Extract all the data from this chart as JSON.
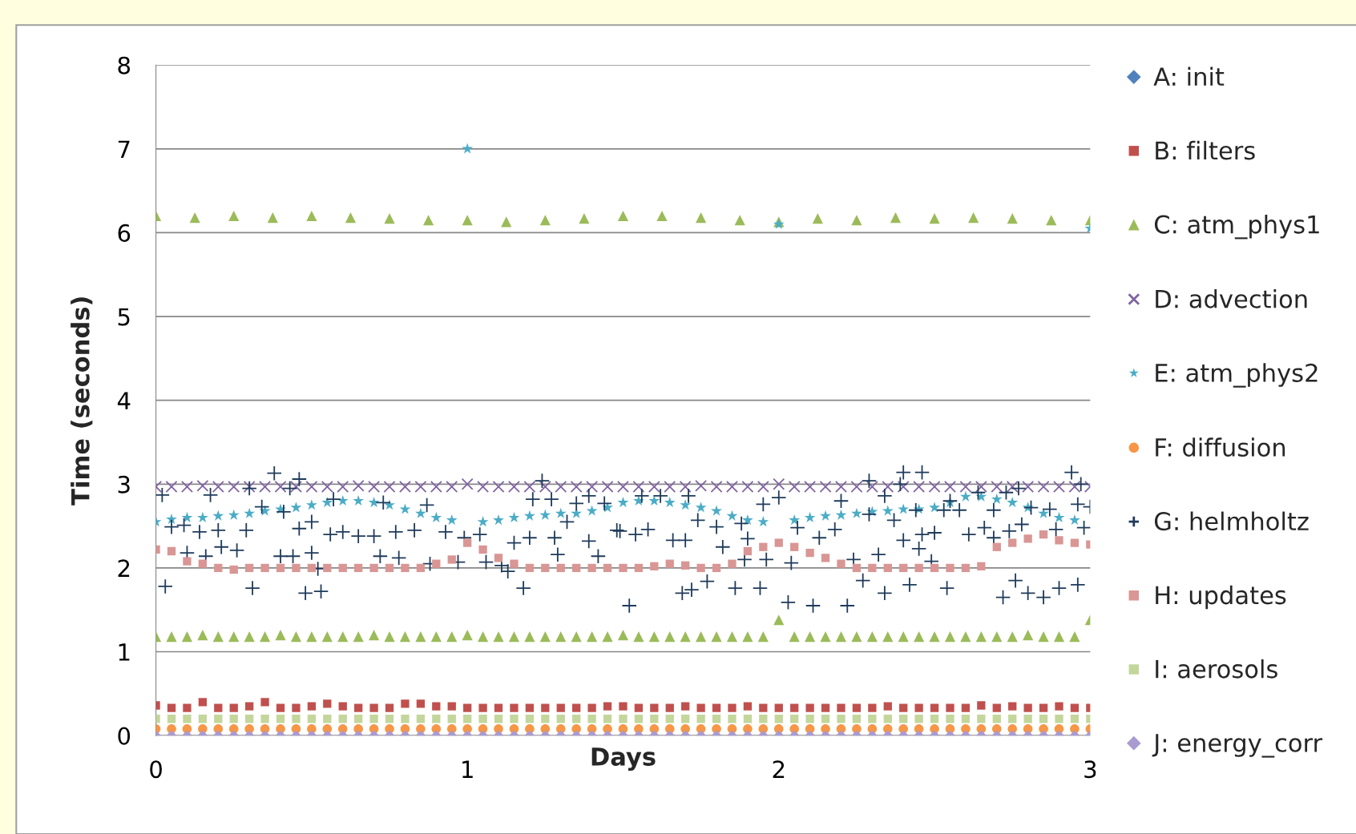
{
  "chart_data": {
    "type": "scatter",
    "xlabel": "Days",
    "ylabel": "Time (seconds)",
    "x": [
      0,
      0.05,
      0.1,
      0.15,
      0.2,
      0.25,
      0.3,
      0.35,
      0.4,
      0.45,
      0.5,
      0.55,
      0.6,
      0.65,
      0.7,
      0.75,
      0.8,
      0.85,
      0.9,
      0.95,
      1,
      1.05,
      1.1,
      1.15,
      1.2,
      1.25,
      1.3,
      1.35,
      1.4,
      1.45,
      1.5,
      1.55,
      1.6,
      1.65,
      1.7,
      1.75,
      1.8,
      1.85,
      1.9,
      1.95,
      2,
      2.05,
      2.1,
      2.15,
      2.2,
      2.25,
      2.3,
      2.35,
      2.4,
      2.45,
      2.5,
      2.55,
      2.6,
      2.65,
      2.7,
      2.75,
      2.8,
      2.85,
      2.9,
      2.95,
      3
    ],
    "xlim": [
      0,
      3
    ],
    "xticks": [
      0,
      1,
      2,
      3
    ],
    "ylim": [
      0,
      8
    ],
    "yticks": [
      0,
      1,
      2,
      3,
      4,
      5,
      6,
      7,
      8
    ],
    "grid": "y",
    "legend": "right",
    "series": [
      {
        "name": "A: init",
        "color": "#4f81bd",
        "marker": "diamond",
        "values": [
          null,
          null,
          null,
          null,
          null,
          null,
          null,
          null,
          null,
          null,
          null,
          null,
          null,
          null,
          null,
          null,
          null,
          null,
          null,
          null,
          null,
          null,
          null,
          null,
          null,
          null,
          null,
          null,
          null,
          null,
          null,
          null,
          null,
          null,
          null,
          null,
          null,
          null,
          null,
          null,
          null,
          null,
          null,
          null,
          null,
          null,
          null,
          null,
          null,
          null,
          null,
          null,
          null,
          null,
          null,
          null,
          null,
          null,
          null,
          null,
          null
        ]
      },
      {
        "name": "B: filters",
        "color": "#c0504d",
        "marker": "square",
        "values": [
          0.36,
          0.33,
          0.33,
          0.4,
          0.33,
          0.33,
          0.35,
          0.4,
          0.33,
          0.33,
          0.35,
          0.38,
          0.35,
          0.33,
          0.33,
          0.33,
          0.38,
          0.38,
          0.35,
          0.35,
          0.33,
          0.33,
          0.33,
          0.33,
          0.33,
          0.33,
          0.33,
          0.33,
          0.33,
          0.35,
          0.35,
          0.33,
          0.33,
          0.33,
          0.35,
          0.33,
          0.33,
          0.33,
          0.35,
          0.33,
          0.33,
          0.33,
          0.33,
          0.33,
          0.33,
          0.33,
          0.33,
          0.35,
          0.33,
          0.33,
          0.33,
          0.33,
          0.33,
          0.36,
          0.33,
          0.35,
          0.33,
          0.33,
          0.35,
          0.33,
          0.33
        ]
      },
      {
        "name": "C: atm_phys1",
        "color": "#9bbb59",
        "marker": "triangle",
        "x": [
          0,
          0.05,
          0.1,
          0.15,
          0.2,
          0.25,
          0.3,
          0.35,
          0.4,
          0.45,
          0.5,
          0.55,
          0.6,
          0.65,
          0.7,
          0.75,
          0.8,
          0.85,
          0.9,
          0.95,
          1,
          1.05,
          1.1,
          1.15,
          1.2,
          1.25,
          1.3,
          1.35,
          1.4,
          1.45,
          1.5,
          1.55,
          1.6,
          1.65,
          1.7,
          1.75,
          1.8,
          1.85,
          1.9,
          1.95,
          2,
          2.05,
          2.1,
          2.15,
          2.2,
          2.25,
          2.3,
          2.35,
          2.4,
          2.45,
          2.5,
          2.55,
          2.6,
          2.65,
          2.7,
          2.75,
          2.8,
          2.85,
          2.9,
          2.95,
          3,
          0,
          0.125,
          0.25,
          0.375,
          0.5,
          0.625,
          0.75,
          0.875,
          1,
          1.125,
          1.25,
          1.375,
          1.5,
          1.625,
          1.75,
          1.875,
          2,
          2.125,
          2.25,
          2.375,
          2.5,
          2.625,
          2.75,
          2.875,
          3
        ],
        "values": [
          1.18,
          1.18,
          1.18,
          1.2,
          1.18,
          1.18,
          1.18,
          1.18,
          1.2,
          1.18,
          1.18,
          1.18,
          1.18,
          1.18,
          1.2,
          1.18,
          1.18,
          1.18,
          1.18,
          1.18,
          1.2,
          1.18,
          1.18,
          1.18,
          1.18,
          1.18,
          1.18,
          1.18,
          1.18,
          1.18,
          1.2,
          1.18,
          1.18,
          1.18,
          1.18,
          1.18,
          1.18,
          1.18,
          1.18,
          1.18,
          1.38,
          1.18,
          1.18,
          1.18,
          1.18,
          1.18,
          1.18,
          1.18,
          1.18,
          1.18,
          1.18,
          1.18,
          1.18,
          1.18,
          1.18,
          1.18,
          1.2,
          1.18,
          1.18,
          1.18,
          1.38,
          6.2,
          6.18,
          6.2,
          6.18,
          6.2,
          6.18,
          6.17,
          6.15,
          6.15,
          6.13,
          6.15,
          6.17,
          6.2,
          6.2,
          6.18,
          6.15,
          6.13,
          6.17,
          6.15,
          6.18,
          6.17,
          6.18,
          6.17,
          6.15,
          6.15
        ]
      },
      {
        "name": "D: advection",
        "color": "#8064a2",
        "marker": "cross",
        "values": [
          2.97,
          2.97,
          2.97,
          2.98,
          2.97,
          2.97,
          2.97,
          2.97,
          2.97,
          2.97,
          2.97,
          2.97,
          2.97,
          2.98,
          2.97,
          2.97,
          2.97,
          2.97,
          2.97,
          2.97,
          3.0,
          2.97,
          2.97,
          2.97,
          2.97,
          2.97,
          2.97,
          2.97,
          2.97,
          2.97,
          2.97,
          2.97,
          2.97,
          2.97,
          2.97,
          2.98,
          2.97,
          2.97,
          2.97,
          2.97,
          3.0,
          2.97,
          2.97,
          2.97,
          2.97,
          2.97,
          2.97,
          2.97,
          2.97,
          2.97,
          2.97,
          2.97,
          2.97,
          2.97,
          2.97,
          2.97,
          2.97,
          2.97,
          2.97,
          2.97,
          2.97
        ]
      },
      {
        "name": "E: atm_phys2",
        "color": "#4bacc6",
        "marker": "star",
        "values": [
          2.55,
          2.58,
          2.6,
          2.6,
          2.62,
          2.63,
          2.65,
          2.68,
          2.7,
          2.72,
          2.75,
          2.78,
          2.8,
          2.8,
          2.78,
          2.75,
          2.7,
          2.65,
          2.6,
          2.57,
          7.0,
          2.55,
          2.57,
          2.6,
          2.62,
          2.63,
          2.65,
          2.65,
          2.68,
          2.72,
          2.78,
          2.8,
          2.8,
          2.78,
          2.75,
          2.72,
          2.68,
          2.62,
          2.57,
          2.55,
          6.1,
          2.57,
          2.6,
          2.62,
          2.63,
          2.65,
          2.67,
          2.68,
          2.7,
          2.7,
          2.72,
          2.78,
          2.85,
          2.85,
          2.82,
          2.78,
          2.72,
          2.65,
          2.6,
          2.57,
          6.05
        ]
      },
      {
        "name": "F: diffusion",
        "color": "#f79646",
        "marker": "circle",
        "values": [
          0.08,
          0.08,
          0.08,
          0.08,
          0.08,
          0.08,
          0.08,
          0.08,
          0.08,
          0.08,
          0.08,
          0.08,
          0.08,
          0.08,
          0.08,
          0.08,
          0.08,
          0.08,
          0.08,
          0.08,
          0.08,
          0.08,
          0.08,
          0.08,
          0.08,
          0.08,
          0.08,
          0.08,
          0.08,
          0.08,
          0.08,
          0.08,
          0.08,
          0.08,
          0.08,
          0.08,
          0.08,
          0.08,
          0.08,
          0.08,
          0.08,
          0.08,
          0.08,
          0.08,
          0.08,
          0.08,
          0.08,
          0.08,
          0.08,
          0.08,
          0.08,
          0.08,
          0.08,
          0.08,
          0.08,
          0.08,
          0.08,
          0.08,
          0.08,
          0.08,
          0.08
        ]
      },
      {
        "name": "G: helmholtz",
        "color": "#1f3b5a",
        "marker": "plus",
        "x": [
          0.02,
          0.03,
          0.175,
          0.38,
          0.46,
          0.43,
          0.3,
          0.31,
          0.48,
          0.53,
          0.05,
          0.09,
          0.14,
          0.2,
          0.29,
          0.34,
          0.41,
          0.46,
          0.5,
          0.1,
          0.16,
          0.21,
          0.26,
          0.4,
          0.44,
          0.5,
          0.52,
          0.57,
          0.56,
          0.6,
          0.65,
          0.7,
          0.73,
          0.72,
          0.78,
          0.77,
          0.83,
          0.87,
          0.88,
          0.93,
          0.99,
          0.97,
          1.04,
          1.06,
          1.11,
          1.13,
          1.18,
          1.15,
          1.2,
          1.24,
          1.21,
          1.27,
          1.28,
          1.29,
          1.32,
          1.35,
          1.39,
          1.39,
          1.44,
          1.42,
          1.48,
          1.52,
          1.69,
          1.72,
          1.77,
          1.86,
          1.94,
          2.03,
          2.11,
          2.22,
          2.27,
          2.34,
          2.42,
          2.54,
          2.72,
          2.76,
          2.8,
          2.85,
          2.9,
          2.96,
          1.49,
          1.54,
          1.58,
          1.66,
          1.7,
          1.74,
          1.8,
          1.56,
          1.62,
          1.71,
          1.82,
          1.88,
          1.89,
          1.96,
          1.9,
          1.95,
          2.0,
          2.04,
          2.06,
          2.13,
          2.18,
          2.2,
          2.24,
          2.29,
          2.32,
          2.34,
          2.37,
          2.4,
          2.45,
          2.5,
          2.46,
          2.49,
          2.4,
          2.46,
          2.29,
          2.39,
          2.55,
          2.61,
          2.66,
          2.69,
          2.74,
          2.78,
          2.64,
          2.73,
          2.77,
          2.81,
          2.87,
          2.89,
          2.94,
          2.97,
          2.96,
          2.98,
          3.0,
          2.69,
          2.58,
          2.53,
          2.44
        ],
        "values": [
          2.87,
          1.78,
          2.87,
          3.13,
          3.06,
          2.95,
          2.95,
          1.76,
          1.7,
          1.72,
          2.49,
          2.51,
          2.43,
          2.45,
          2.45,
          2.73,
          2.67,
          2.47,
          2.55,
          2.18,
          2.14,
          2.25,
          2.21,
          2.14,
          2.14,
          2.18,
          1.99,
          2.82,
          2.4,
          2.43,
          2.38,
          2.38,
          2.78,
          2.14,
          2.12,
          2.43,
          2.45,
          2.75,
          2.05,
          2.43,
          2.36,
          2.07,
          2.4,
          2.07,
          2.03,
          1.96,
          1.76,
          2.3,
          2.36,
          3.04,
          2.82,
          2.82,
          2.36,
          2.16,
          2.55,
          2.77,
          2.32,
          2.86,
          2.77,
          2.14,
          2.45,
          1.55,
          1.7,
          1.74,
          1.84,
          1.76,
          1.76,
          1.59,
          1.55,
          1.55,
          1.85,
          1.7,
          1.8,
          1.76,
          1.65,
          1.85,
          1.7,
          1.65,
          1.76,
          1.8,
          2.44,
          2.4,
          2.46,
          2.33,
          2.33,
          2.57,
          2.49,
          2.86,
          2.86,
          2.86,
          2.25,
          2.53,
          2.1,
          2.1,
          2.35,
          2.76,
          2.84,
          2.06,
          2.48,
          2.36,
          2.46,
          2.8,
          2.1,
          2.64,
          2.16,
          2.86,
          2.57,
          2.33,
          2.23,
          2.42,
          2.4,
          2.08,
          3.14,
          3.14,
          3.04,
          3.0,
          2.8,
          2.4,
          2.48,
          2.36,
          2.44,
          2.52,
          2.9,
          2.9,
          2.95,
          2.72,
          2.7,
          2.46,
          3.14,
          3.0,
          2.76,
          2.48,
          2.73,
          2.69,
          2.69,
          2.69,
          2.69
        ]
      },
      {
        "name": "H: updates",
        "color": "#d99694",
        "marker": "square",
        "values": [
          2.22,
          2.2,
          2.08,
          2.05,
          2.0,
          1.98,
          2.0,
          2.0,
          2.0,
          2.0,
          2.0,
          2.0,
          2.0,
          2.0,
          2.0,
          2.0,
          2.0,
          2.0,
          2.05,
          2.1,
          2.3,
          2.22,
          2.12,
          2.05,
          2.0,
          2.0,
          2.0,
          2.0,
          2.0,
          2.0,
          2.0,
          2.0,
          2.02,
          2.05,
          2.03,
          2.0,
          2.0,
          2.05,
          2.2,
          2.25,
          2.3,
          2.25,
          2.18,
          2.12,
          2.05,
          2.0,
          2.0,
          2.0,
          2.0,
          2.0,
          2.0,
          2.0,
          2.0,
          2.02,
          2.25,
          2.3,
          2.35,
          2.4,
          2.33,
          2.3,
          2.28
        ]
      },
      {
        "name": "I: aerosols",
        "color": "#c3d69b",
        "marker": "square",
        "values": [
          0.2,
          0.2,
          0.2,
          0.2,
          0.2,
          0.2,
          0.2,
          0.2,
          0.2,
          0.2,
          0.2,
          0.2,
          0.2,
          0.2,
          0.2,
          0.2,
          0.2,
          0.2,
          0.2,
          0.2,
          0.2,
          0.2,
          0.2,
          0.2,
          0.2,
          0.2,
          0.2,
          0.2,
          0.2,
          0.2,
          0.2,
          0.2,
          0.2,
          0.2,
          0.2,
          0.2,
          0.2,
          0.2,
          0.2,
          0.2,
          0.2,
          0.2,
          0.2,
          0.2,
          0.2,
          0.2,
          0.2,
          0.2,
          0.2,
          0.2,
          0.2,
          0.2,
          0.2,
          0.2,
          0.2,
          0.2,
          0.2,
          0.2,
          0.2,
          0.2,
          0.2
        ]
      },
      {
        "name": "J: energy_corr",
        "color": "#a99bd0",
        "marker": "diamond",
        "values": [
          0.0,
          0.0,
          0.0,
          0.0,
          0.0,
          0.0,
          0.0,
          0.0,
          0.0,
          0.0,
          0.0,
          0.0,
          0.0,
          0.0,
          0.0,
          0.0,
          0.0,
          0.0,
          0.0,
          0.0,
          0.0,
          0.0,
          0.0,
          0.0,
          0.0,
          0.0,
          0.0,
          0.0,
          0.0,
          0.0,
          0.0,
          0.0,
          0.0,
          0.0,
          0.0,
          0.0,
          0.0,
          0.0,
          0.0,
          0.0,
          0.0,
          0.0,
          0.0,
          0.0,
          0.0,
          0.0,
          0.0,
          0.0,
          0.0,
          0.0,
          0.0,
          0.0,
          0.0,
          0.0,
          0.0,
          0.0,
          0.0,
          0.0,
          0.0,
          0.0,
          0.0
        ]
      }
    ]
  }
}
